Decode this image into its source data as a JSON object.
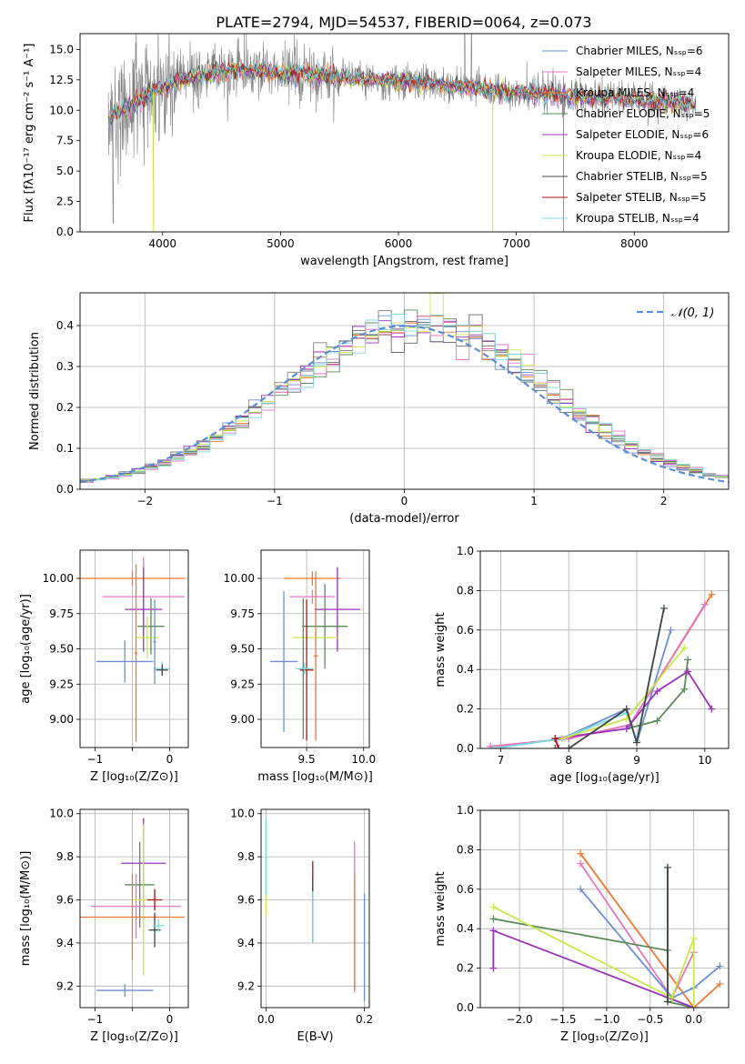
{
  "figure_title": "PLATE=2794, MJD=54537, FIBERID=0064, z=0.073",
  "colors": [
    "#6a8fd6",
    "#ee7733",
    "#5a8a5a",
    "#9933bb",
    "#666666",
    "#e377c2",
    "#7f7f7f",
    "#c8e84a",
    "#7fd8dd",
    "#aa1111",
    "#444444"
  ],
  "chart_data": [
    {
      "id": "spectrum",
      "type": "line",
      "title": "PLATE=2794, MJD=54537, FIBERID=0064, z=0.073",
      "xlabel": "wavelength [Angstrom, rest frame]",
      "ylabel": "Flux [fλ10⁻¹⁷ erg cm⁻² s⁻¹ A⁻¹]",
      "xlim": [
        3300,
        8800
      ],
      "ylim": [
        0,
        16.3
      ],
      "xticks": [
        4000,
        5000,
        6000,
        7000,
        8000
      ],
      "yticks": [
        0.0,
        2.5,
        5.0,
        7.5,
        10.0,
        12.5,
        15.0
      ],
      "grid": false,
      "legend_position": "top-right",
      "legend": [
        {
          "label": "Chabrier MILES, Nₛₛₚ=6",
          "color": "#6a8fd6"
        },
        {
          "label": "Salpeter MILES, Nₛₛₚ=4",
          "color": "#e377c2"
        },
        {
          "label": "Kroupa MILES, Nₛₛₚ=4",
          "color": "#ee7733"
        },
        {
          "label": "Chabrier ELODIE, Nₛₛₚ=5",
          "color": "#5a8a5a"
        },
        {
          "label": "Salpeter ELODIE, Nₛₛₚ=6",
          "color": "#9933bb"
        },
        {
          "label": "Kroupa ELODIE, Nₛₛₚ=4",
          "color": "#c8e84a"
        },
        {
          "label": "Chabrier STELIB, Nₛₛₚ=5",
          "color": "#444444"
        },
        {
          "label": "Salpeter STELIB, Nₛₛₚ=5",
          "color": "#aa1111"
        },
        {
          "label": "Kroupa STELIB, Nₛₛₚ=4",
          "color": "#7fd8dd"
        }
      ],
      "continuum_points": [
        [
          3540,
          9.5
        ],
        [
          3700,
          10.2
        ],
        [
          3900,
          11.5
        ],
        [
          4000,
          11.8
        ],
        [
          4200,
          12.6
        ],
        [
          4500,
          13.2
        ],
        [
          4800,
          13.3
        ],
        [
          5000,
          13.0
        ],
        [
          5300,
          12.9
        ],
        [
          5700,
          12.6
        ],
        [
          6000,
          12.4
        ],
        [
          6300,
          12.2
        ],
        [
          6600,
          11.8
        ],
        [
          7000,
          11.5
        ],
        [
          7400,
          11.2
        ],
        [
          7800,
          11.0
        ],
        [
          8200,
          10.7
        ],
        [
          8500,
          10.5
        ]
      ],
      "features": [
        {
          "x": 3580,
          "y": 0.7
        },
        {
          "x": 3940,
          "y": 8.2
        },
        {
          "x": 3970,
          "y": 7.5
        },
        {
          "x": 4100,
          "y": 9.8
        },
        {
          "x": 4300,
          "y": 10.5
        },
        {
          "x": 5175,
          "y": 10.8
        },
        {
          "x": 5890,
          "y": 10.9
        },
        {
          "x": 6563,
          "y": 16.3
        },
        {
          "x": 6620,
          "y": 16.3
        },
        {
          "x": 8540,
          "y": 7.0
        }
      ],
      "model_drops": [
        {
          "x": 3920,
          "color": "#c8e84a"
        },
        {
          "x": 6800,
          "color": "#c8e84a"
        },
        {
          "x": 7400,
          "color": "#ee7733"
        }
      ]
    },
    {
      "id": "residuals",
      "type": "bar",
      "xlabel": "(data-model)/error",
      "ylabel": "Normed distribution",
      "xlim": [
        -2.5,
        2.5
      ],
      "ylim": [
        0,
        0.48
      ],
      "xticks": [
        -2,
        -1,
        0,
        1,
        2
      ],
      "yticks": [
        0.0,
        0.1,
        0.2,
        0.3,
        0.4
      ],
      "grid": true,
      "legend_position": "top-right",
      "legend_label": "𝒩(0, 1)",
      "gaussian": {
        "mu": 0,
        "sigma": 1,
        "color": "#5b8ed6"
      },
      "bin_width": 0.1,
      "n_histograms": 9
    },
    {
      "id": "age_vs_Z",
      "type": "scatter",
      "xlabel": "Z [log₁₀(Z/Z⊙)]",
      "ylabel": "age  [log₁₀(age/yr)]",
      "xlim": [
        -1.2,
        0.25
      ],
      "ylim": [
        8.8,
        10.2
      ],
      "xticks": [
        -1,
        -0.5,
        0
      ],
      "xtick_labels": [
        "−1",
        "",
        "0"
      ],
      "yticks": [
        9.0,
        9.25,
        9.5,
        9.75,
        10.0
      ],
      "grid": true,
      "points": [
        {
          "x": -0.5,
          "y": 10.0,
          "xerr": 0.7,
          "yerr": 0.05,
          "color": "#ee7733"
        },
        {
          "x": -0.35,
          "y": 9.87,
          "xerr": 0.55,
          "yerr": 0.28,
          "color": "#e377c2"
        },
        {
          "x": -0.35,
          "y": 9.78,
          "xerr": 0.25,
          "yerr": 0.3,
          "color": "#9933bb"
        },
        {
          "x": -0.25,
          "y": 9.66,
          "xerr": 0.18,
          "yerr": 0.2,
          "color": "#5a8a5a"
        },
        {
          "x": -0.3,
          "y": 9.58,
          "xerr": 0.15,
          "yerr": 0.15,
          "color": "#c8e84a"
        },
        {
          "x": -0.6,
          "y": 9.41,
          "xerr": 0.38,
          "yerr": 0.15,
          "color": "#6a8fd6"
        },
        {
          "x": -0.1,
          "y": 9.36,
          "xerr": 0.1,
          "yerr": 0.05,
          "color": "#7fd8dd"
        },
        {
          "x": -0.1,
          "y": 9.35,
          "xerr": 0.08,
          "yerr": 0.04,
          "color": "#444444"
        },
        {
          "x": -0.45,
          "y": 9.47,
          "xerr": 0.02,
          "yerr": 0.63,
          "color": "#ee7733"
        },
        {
          "x": -0.2,
          "y": 9.55,
          "xerr": 0.02,
          "yerr": 0.3,
          "color": "#6a8fd6"
        }
      ]
    },
    {
      "id": "age_vs_mass",
      "type": "scatter",
      "xlabel": "mass [log₁₀(M/M⊙)]",
      "xlim": [
        9.1,
        10.05
      ],
      "ylim": [
        8.8,
        10.2
      ],
      "xticks": [
        9.5,
        10.0
      ],
      "yticks": [
        9.0,
        9.25,
        9.5,
        9.75,
        10.0
      ],
      "grid": true,
      "points": [
        {
          "x": 9.55,
          "y": 10.0,
          "xerr": 0.25,
          "yerr": 0.05,
          "color": "#ee7733"
        },
        {
          "x": 9.55,
          "y": 9.87,
          "xerr": 0.2,
          "yerr": 0.05,
          "color": "#e377c2"
        },
        {
          "x": 9.77,
          "y": 9.78,
          "xerr": 0.2,
          "yerr": 0.3,
          "color": "#9933bb"
        },
        {
          "x": 9.66,
          "y": 9.66,
          "xerr": 0.2,
          "yerr": 0.3,
          "color": "#5a8a5a"
        },
        {
          "x": 9.58,
          "y": 9.58,
          "xerr": 0.2,
          "yerr": 0.05,
          "color": "#c8e84a"
        },
        {
          "x": 9.3,
          "y": 9.41,
          "xerr": 0.12,
          "yerr": 0.5,
          "color": "#6a8fd6"
        },
        {
          "x": 9.47,
          "y": 9.36,
          "xerr": 0.05,
          "yerr": 0.5,
          "color": "#5a8a5a"
        },
        {
          "x": 9.5,
          "y": 9.35,
          "xerr": 0.06,
          "yerr": 0.5,
          "color": "#aa1111"
        },
        {
          "x": 9.58,
          "y": 9.45,
          "xerr": 0.02,
          "yerr": 0.6,
          "color": "#ee7733"
        },
        {
          "x": 9.48,
          "y": 9.36,
          "xerr": 0.08,
          "yerr": 0.04,
          "color": "#7fd8dd"
        }
      ]
    },
    {
      "id": "weight_vs_age",
      "type": "line",
      "xlabel": "age  [log₁₀(age/yr)]",
      "ylabel": "mass weight",
      "xlim": [
        6.7,
        10.35
      ],
      "ylim": [
        0,
        1.0
      ],
      "xticks": [
        7,
        8,
        9,
        10
      ],
      "yticks": [
        0.0,
        0.2,
        0.4,
        0.6,
        0.8,
        1.0
      ],
      "grid": true,
      "series": [
        {
          "color": "#ee7733",
          "points": [
            [
              6.85,
              0.01
            ],
            [
              8.0,
              0.05
            ],
            [
              8.9,
              0.12
            ],
            [
              10.1,
              0.78
            ]
          ]
        },
        {
          "color": "#e377c2",
          "points": [
            [
              6.85,
              0.01
            ],
            [
              8.0,
              0.05
            ],
            [
              8.9,
              0.12
            ],
            [
              10.0,
              0.73
            ]
          ]
        },
        {
          "color": "#6a8fd6",
          "points": [
            [
              6.9,
              0.0
            ],
            [
              7.9,
              0.05
            ],
            [
              8.85,
              0.2
            ],
            [
              9.0,
              0.03
            ],
            [
              9.5,
              0.6
            ]
          ]
        },
        {
          "color": "#7fd8dd",
          "points": [
            [
              6.9,
              0.0
            ],
            [
              7.9,
              0.05
            ],
            [
              8.85,
              0.18
            ],
            [
              9.0,
              0.04
            ],
            [
              9.4,
              0.71
            ]
          ]
        },
        {
          "color": "#5a8a5a",
          "points": [
            [
              8.85,
              0.1
            ],
            [
              9.3,
              0.14
            ],
            [
              9.7,
              0.3
            ],
            [
              9.75,
              0.45
            ]
          ]
        },
        {
          "color": "#9933bb",
          "points": [
            [
              7.8,
              0.05
            ],
            [
              8.85,
              0.1
            ],
            [
              9.3,
              0.29
            ],
            [
              9.75,
              0.39
            ],
            [
              10.1,
              0.2
            ]
          ]
        },
        {
          "color": "#c8e84a",
          "points": [
            [
              7.9,
              0.05
            ],
            [
              8.85,
              0.15
            ],
            [
              9.7,
              0.51
            ]
          ]
        },
        {
          "color": "#444444",
          "points": [
            [
              7.8,
              0.0
            ],
            [
              8.0,
              0.0
            ],
            [
              8.85,
              0.2
            ],
            [
              9.0,
              0.03
            ],
            [
              9.4,
              0.71
            ]
          ]
        },
        {
          "color": "#aa1111",
          "points": [
            [
              7.85,
              0.0
            ],
            [
              7.8,
              0.05
            ]
          ]
        }
      ]
    },
    {
      "id": "mass_vs_Z",
      "type": "scatter",
      "xlabel": "Z [log₁₀(Z/Z⊙)]",
      "ylabel": "mass [log₁₀(M/M⊙)]",
      "xlim": [
        -1.2,
        0.25
      ],
      "ylim": [
        9.1,
        10.02
      ],
      "xticks": [
        -1,
        -0.5,
        0
      ],
      "xtick_labels": [
        "−1",
        "",
        "0"
      ],
      "yticks": [
        9.2,
        9.4,
        9.6,
        9.8,
        10.0
      ],
      "grid": true,
      "points": [
        {
          "x": -0.35,
          "y": 9.77,
          "xerr": 0.3,
          "yerr": 0.21,
          "color": "#9933bb"
        },
        {
          "x": -0.4,
          "y": 9.67,
          "xerr": 0.2,
          "yerr": 0.2,
          "color": "#5a8a5a"
        },
        {
          "x": -0.45,
          "y": 9.57,
          "xerr": 0.6,
          "yerr": 0.15,
          "color": "#e377c2"
        },
        {
          "x": -0.35,
          "y": 9.6,
          "xerr": 0.15,
          "yerr": 0.35,
          "color": "#c8e84a"
        },
        {
          "x": -0.5,
          "y": 9.52,
          "xerr": 0.7,
          "yerr": 0.2,
          "color": "#ee7733"
        },
        {
          "x": -0.2,
          "y": 9.6,
          "xerr": 0.1,
          "yerr": 0.05,
          "color": "#aa1111"
        },
        {
          "x": -0.2,
          "y": 9.46,
          "xerr": 0.08,
          "yerr": 0.08,
          "color": "#444444"
        },
        {
          "x": -0.15,
          "y": 9.48,
          "xerr": 0.08,
          "yerr": 0.03,
          "color": "#7fd8dd"
        },
        {
          "x": -0.6,
          "y": 9.18,
          "xerr": 0.38,
          "yerr": 0.03,
          "color": "#6a8fd6"
        }
      ]
    },
    {
      "id": "mass_vs_ebv",
      "type": "scatter",
      "xlabel": "E(B-V)",
      "xlim": [
        -0.01,
        0.21
      ],
      "ylim": [
        9.1,
        10.02
      ],
      "xticks": [
        0.0,
        0.2
      ],
      "yticks": [
        9.2,
        9.4,
        9.6,
        9.8,
        10.0
      ],
      "grid": true,
      "points": [
        {
          "x": 0.0,
          "y": 9.75,
          "yerr": 0.22,
          "color": "#c8e84a"
        },
        {
          "x": 0.0,
          "y": 9.8,
          "yerr": 0.18,
          "color": "#7fd8dd"
        },
        {
          "x": 0.095,
          "y": 9.7,
          "yerr": 0.08,
          "color": "#aa1111"
        },
        {
          "x": 0.095,
          "y": 9.55,
          "yerr": 0.15,
          "color": "#444444"
        },
        {
          "x": 0.095,
          "y": 9.52,
          "yerr": 0.12,
          "color": "#7fd8dd"
        },
        {
          "x": 0.18,
          "y": 9.52,
          "yerr": 0.35,
          "color": "#e377c2"
        },
        {
          "x": 0.18,
          "y": 9.45,
          "yerr": 0.27,
          "color": "#ee7733"
        },
        {
          "x": 0.2,
          "y": 9.38,
          "yerr": 0.25,
          "color": "#6a8fd6"
        }
      ]
    },
    {
      "id": "weight_vs_Z",
      "type": "line",
      "xlabel": "Z [log₁₀(Z/Z⊙)]",
      "ylabel": "mass weight",
      "xlim": [
        -2.45,
        0.4
      ],
      "ylim": [
        0,
        1.0
      ],
      "xticks": [
        -2.0,
        -1.5,
        -1.0,
        -0.5,
        0.0
      ],
      "xtick_labels": [
        "−2.0",
        "−1.5",
        "−1.0",
        "−0.5",
        "0.0"
      ],
      "yticks": [
        0.0,
        0.2,
        0.4,
        0.6,
        0.8,
        1.0
      ],
      "grid": true,
      "series": [
        {
          "color": "#ee7733",
          "points": [
            [
              -1.3,
              0.78
            ],
            [
              0.0,
              0.0
            ],
            [
              0.3,
              0.12
            ]
          ]
        },
        {
          "color": "#e377c2",
          "points": [
            [
              -1.3,
              0.73
            ],
            [
              -0.25,
              0.05
            ],
            [
              0.0,
              0.28
            ]
          ]
        },
        {
          "color": "#6a8fd6",
          "points": [
            [
              -1.3,
              0.6
            ],
            [
              -0.25,
              0.05
            ],
            [
              0.0,
              0.1
            ],
            [
              0.3,
              0.21
            ]
          ]
        },
        {
          "color": "#7fd8dd",
          "points": [
            [
              -0.3,
              0.71
            ],
            [
              -0.3,
              0.05
            ],
            [
              0.0,
              0.0
            ]
          ]
        },
        {
          "color": "#5a8a5a",
          "points": [
            [
              -2.3,
              0.45
            ],
            [
              -0.3,
              0.29
            ],
            [
              -0.3,
              0.71
            ],
            [
              -0.3,
              0.03
            ],
            [
              0.0,
              0.0
            ]
          ]
        },
        {
          "color": "#9933bb",
          "points": [
            [
              -2.3,
              0.2
            ],
            [
              -2.3,
              0.39
            ],
            [
              0.0,
              0.0
            ]
          ]
        },
        {
          "color": "#c8e84a",
          "points": [
            [
              -2.3,
              0.51
            ],
            [
              -0.25,
              0.05
            ],
            [
              0.0,
              0.35
            ],
            [
              0.0,
              0.0
            ]
          ]
        },
        {
          "color": "#444444",
          "points": [
            [
              -0.3,
              0.71
            ],
            [
              -0.3,
              0.03
            ]
          ]
        }
      ]
    }
  ]
}
